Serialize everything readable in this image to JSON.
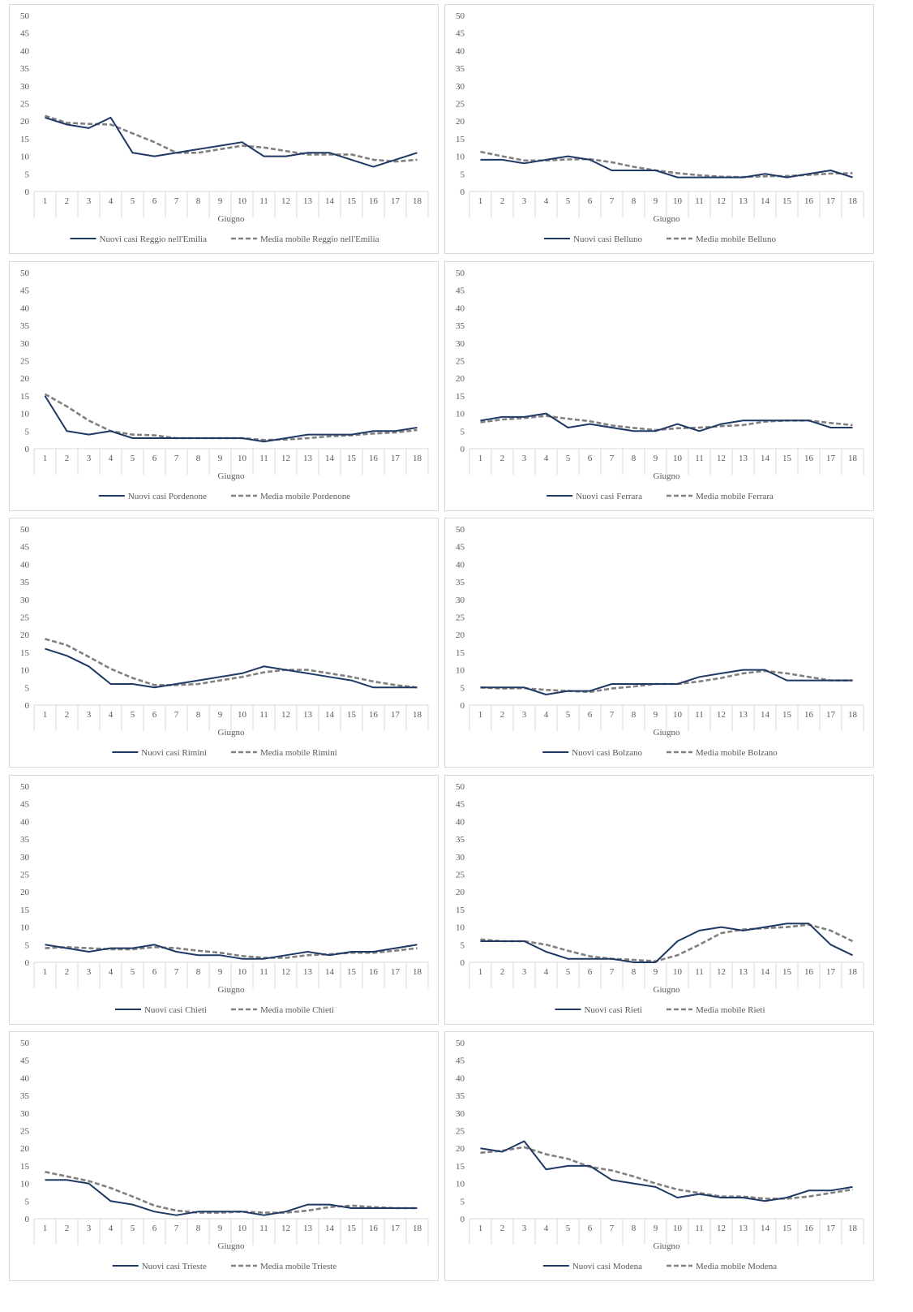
{
  "colors": {
    "new_cases": "#1f3864",
    "moving_avg": "#808080",
    "axis": "#d9d9d9",
    "text": "#595959"
  },
  "chart_data": [
    {
      "type": "line",
      "xlabel": "Giugno",
      "ylim": [
        0,
        50
      ],
      "yticks": [
        0,
        5,
        10,
        15,
        20,
        25,
        30,
        35,
        40,
        45,
        50
      ],
      "categories": [
        "1",
        "2",
        "3",
        "4",
        "5",
        "6",
        "7",
        "8",
        "9",
        "10",
        "11",
        "12",
        "13",
        "14",
        "15",
        "16",
        "17",
        "18"
      ],
      "legend_position": "bottom",
      "series": [
        {
          "name": "Nuovi casi Reggio nell'Emilia",
          "style": "solid",
          "values": [
            21,
            19,
            18,
            21,
            11,
            10,
            11,
            12,
            13,
            14,
            10,
            10,
            11,
            11,
            9,
            7,
            9,
            11
          ]
        },
        {
          "name": "Media mobile Reggio nell'Emilia",
          "style": "dashed",
          "values": [
            21.5,
            19.5,
            19.2,
            19,
            16.5,
            14,
            11,
            11,
            12,
            13,
            12.5,
            11.5,
            10.5,
            10.5,
            10.5,
            9,
            8.5,
            9
          ]
        }
      ]
    },
    {
      "type": "line",
      "xlabel": "Giugno",
      "ylim": [
        0,
        50
      ],
      "yticks": [
        0,
        5,
        10,
        15,
        20,
        25,
        30,
        35,
        40,
        45,
        50
      ],
      "categories": [
        "1",
        "2",
        "3",
        "4",
        "5",
        "6",
        "7",
        "8",
        "9",
        "10",
        "11",
        "12",
        "13",
        "14",
        "15",
        "16",
        "17",
        "18"
      ],
      "legend_position": "bottom",
      "series": [
        {
          "name": "Nuovi casi Belluno",
          "style": "solid",
          "values": [
            9,
            9,
            8,
            9,
            10,
            9,
            6,
            6,
            6,
            4,
            4,
            4,
            4,
            5,
            4,
            5,
            6,
            4
          ]
        },
        {
          "name": "Media mobile Belluno",
          "style": "dashed",
          "values": [
            11.3,
            10,
            8.8,
            8.8,
            9.1,
            9.2,
            8.3,
            7,
            6,
            5.2,
            4.6,
            4.2,
            4.1,
            4.3,
            4.4,
            4.7,
            5.1,
            5.2
          ]
        }
      ]
    },
    {
      "type": "line",
      "xlabel": "Giugno",
      "ylim": [
        0,
        50
      ],
      "yticks": [
        0,
        5,
        10,
        15,
        20,
        25,
        30,
        35,
        40,
        45,
        50
      ],
      "categories": [
        "1",
        "2",
        "3",
        "4",
        "5",
        "6",
        "7",
        "8",
        "9",
        "10",
        "11",
        "12",
        "13",
        "14",
        "15",
        "16",
        "17",
        "18"
      ],
      "legend_position": "bottom",
      "series": [
        {
          "name": "Nuovi casi Pordenone",
          "style": "solid",
          "values": [
            15,
            5,
            4,
            5,
            3,
            3,
            3,
            3,
            3,
            3,
            2,
            3,
            4,
            4,
            4,
            5,
            5,
            6
          ]
        },
        {
          "name": "Media mobile Pordenone",
          "style": "dashed",
          "values": [
            15.5,
            12,
            8,
            5,
            4,
            3.8,
            3,
            3,
            3,
            3,
            2.5,
            2.6,
            3,
            3.5,
            3.8,
            4.3,
            4.6,
            5.3
          ]
        }
      ]
    },
    {
      "type": "line",
      "xlabel": "Giugno",
      "ylim": [
        0,
        50
      ],
      "yticks": [
        0,
        5,
        10,
        15,
        20,
        25,
        30,
        35,
        40,
        45,
        50
      ],
      "categories": [
        "1",
        "2",
        "3",
        "4",
        "5",
        "6",
        "7",
        "8",
        "9",
        "10",
        "11",
        "12",
        "13",
        "14",
        "15",
        "16",
        "17",
        "18"
      ],
      "legend_position": "bottom",
      "series": [
        {
          "name": "Nuovi casi Ferrara",
          "style": "solid",
          "values": [
            8,
            9,
            9,
            10,
            6,
            7,
            6,
            5,
            5,
            7,
            5,
            7,
            8,
            8,
            8,
            8,
            6,
            6
          ]
        },
        {
          "name": "Media mobile Ferrara",
          "style": "dashed",
          "values": [
            7.5,
            8.3,
            8.7,
            9.3,
            8.5,
            7.8,
            6.6,
            5.9,
            5.3,
            5.8,
            6,
            6.4,
            6.7,
            7.7,
            8,
            8,
            7.3,
            6.7
          ]
        }
      ]
    },
    {
      "type": "line",
      "xlabel": "Giugno",
      "ylim": [
        0,
        50
      ],
      "yticks": [
        0,
        5,
        10,
        15,
        20,
        25,
        30,
        35,
        40,
        45,
        50
      ],
      "categories": [
        "1",
        "2",
        "3",
        "4",
        "5",
        "6",
        "7",
        "8",
        "9",
        "10",
        "11",
        "12",
        "13",
        "14",
        "15",
        "16",
        "17",
        "18"
      ],
      "legend_position": "bottom",
      "series": [
        {
          "name": "Nuovi casi Rimini",
          "style": "solid",
          "values": [
            16,
            14,
            11,
            6,
            6,
            5,
            6,
            7,
            8,
            9,
            11,
            10,
            9,
            8,
            7,
            5,
            5,
            5
          ]
        },
        {
          "name": "Media mobile Rimini",
          "style": "dashed",
          "values": [
            18.8,
            17,
            13.7,
            10.3,
            7.7,
            5.7,
            5.7,
            6,
            7,
            8,
            9.3,
            10,
            10,
            9,
            8,
            6.7,
            5.7,
            5
          ]
        }
      ]
    },
    {
      "type": "line",
      "xlabel": "Giugno",
      "ylim": [
        0,
        50
      ],
      "yticks": [
        0,
        5,
        10,
        15,
        20,
        25,
        30,
        35,
        40,
        45,
        50
      ],
      "categories": [
        "1",
        "2",
        "3",
        "4",
        "5",
        "6",
        "7",
        "8",
        "9",
        "10",
        "11",
        "12",
        "13",
        "14",
        "15",
        "16",
        "17",
        "18"
      ],
      "legend_position": "bottom",
      "series": [
        {
          "name": "Nuovi casi Bolzano",
          "style": "solid",
          "values": [
            5,
            5,
            5,
            3,
            4,
            4,
            6,
            6,
            6,
            6,
            8,
            9,
            10,
            10,
            7,
            7,
            7,
            7
          ]
        },
        {
          "name": "Media mobile Bolzano",
          "style": "dashed",
          "values": [
            5,
            4.7,
            4.8,
            4.3,
            4,
            3.7,
            4.7,
            5.3,
            6,
            6,
            6.7,
            7.7,
            9,
            9.7,
            9,
            8,
            7,
            7
          ]
        }
      ]
    },
    {
      "type": "line",
      "xlabel": "Giugno",
      "ylim": [
        0,
        50
      ],
      "yticks": [
        0,
        5,
        10,
        15,
        20,
        25,
        30,
        35,
        40,
        45,
        50
      ],
      "categories": [
        "1",
        "2",
        "3",
        "4",
        "5",
        "6",
        "7",
        "8",
        "9",
        "10",
        "11",
        "12",
        "13",
        "14",
        "15",
        "16",
        "17",
        "18"
      ],
      "legend_position": "bottom",
      "series": [
        {
          "name": "Nuovi casi Chieti",
          "style": "solid",
          "values": [
            5,
            4,
            3,
            4,
            4,
            5,
            3,
            2,
            2,
            1,
            1,
            2,
            3,
            2,
            3,
            3,
            4,
            5
          ]
        },
        {
          "name": "Media mobile Chieti",
          "style": "dashed",
          "values": [
            4,
            4.3,
            4,
            3.7,
            3.7,
            4.3,
            4,
            3.3,
            2.7,
            1.8,
            1.3,
            1.3,
            2,
            2.3,
            2.7,
            2.7,
            3.3,
            4
          ]
        }
      ]
    },
    {
      "type": "line",
      "xlabel": "Giugno",
      "ylim": [
        0,
        50
      ],
      "yticks": [
        0,
        5,
        10,
        15,
        20,
        25,
        30,
        35,
        40,
        45,
        50
      ],
      "categories": [
        "1",
        "2",
        "3",
        "4",
        "5",
        "6",
        "7",
        "8",
        "9",
        "10",
        "11",
        "12",
        "13",
        "14",
        "15",
        "16",
        "17",
        "18"
      ],
      "legend_position": "bottom",
      "series": [
        {
          "name": "Nuovi casi Rieti",
          "style": "solid",
          "values": [
            6,
            6,
            6,
            3,
            1,
            1,
            1,
            0,
            0,
            6,
            9,
            10,
            9,
            10,
            11,
            11,
            5,
            2
          ]
        },
        {
          "name": "Media mobile Rieti",
          "style": "dashed",
          "values": [
            6.5,
            6,
            6,
            5,
            3.3,
            1.7,
            1,
            0.7,
            0.3,
            2,
            5,
            8.3,
            9.3,
            9.7,
            10,
            10.7,
            9,
            6
          ]
        }
      ]
    },
    {
      "type": "line",
      "xlabel": "Giugno",
      "ylim": [
        0,
        50
      ],
      "yticks": [
        0,
        5,
        10,
        15,
        20,
        25,
        30,
        35,
        40,
        45,
        50
      ],
      "categories": [
        "1",
        "2",
        "3",
        "4",
        "5",
        "6",
        "7",
        "8",
        "9",
        "10",
        "11",
        "12",
        "13",
        "14",
        "15",
        "16",
        "17",
        "18"
      ],
      "legend_position": "bottom",
      "series": [
        {
          "name": "Nuovi casi Trieste",
          "style": "solid",
          "values": [
            11,
            11,
            10,
            5,
            4,
            2,
            1,
            2,
            2,
            2,
            1,
            2,
            4,
            4,
            3,
            3,
            3,
            3
          ]
        },
        {
          "name": "Media mobile Trieste",
          "style": "dashed",
          "values": [
            13.3,
            12,
            10.7,
            8.7,
            6.3,
            3.7,
            2.3,
            1.7,
            1.7,
            2,
            1.7,
            1.7,
            2.3,
            3.3,
            3.7,
            3.3,
            3,
            3
          ]
        }
      ]
    },
    {
      "type": "line",
      "xlabel": "Giugno",
      "ylim": [
        0,
        50
      ],
      "yticks": [
        0,
        5,
        10,
        15,
        20,
        25,
        30,
        35,
        40,
        45,
        50
      ],
      "categories": [
        "1",
        "2",
        "3",
        "4",
        "5",
        "6",
        "7",
        "8",
        "9",
        "10",
        "11",
        "12",
        "13",
        "14",
        "15",
        "16",
        "17",
        "18"
      ],
      "legend_position": "bottom",
      "series": [
        {
          "name": "Nuovi casi Modena",
          "style": "solid",
          "values": [
            20,
            19,
            22,
            14,
            15,
            15,
            11,
            10,
            9,
            6,
            7,
            6,
            6,
            5,
            6,
            8,
            8,
            9
          ]
        },
        {
          "name": "Media mobile Modena",
          "style": "dashed",
          "values": [
            18.7,
            19.3,
            20.3,
            18.3,
            17,
            14.7,
            13.7,
            12,
            10,
            8.3,
            7.3,
            6.3,
            6.3,
            5.7,
            5.7,
            6.3,
            7.3,
            8.3
          ]
        }
      ]
    }
  ]
}
